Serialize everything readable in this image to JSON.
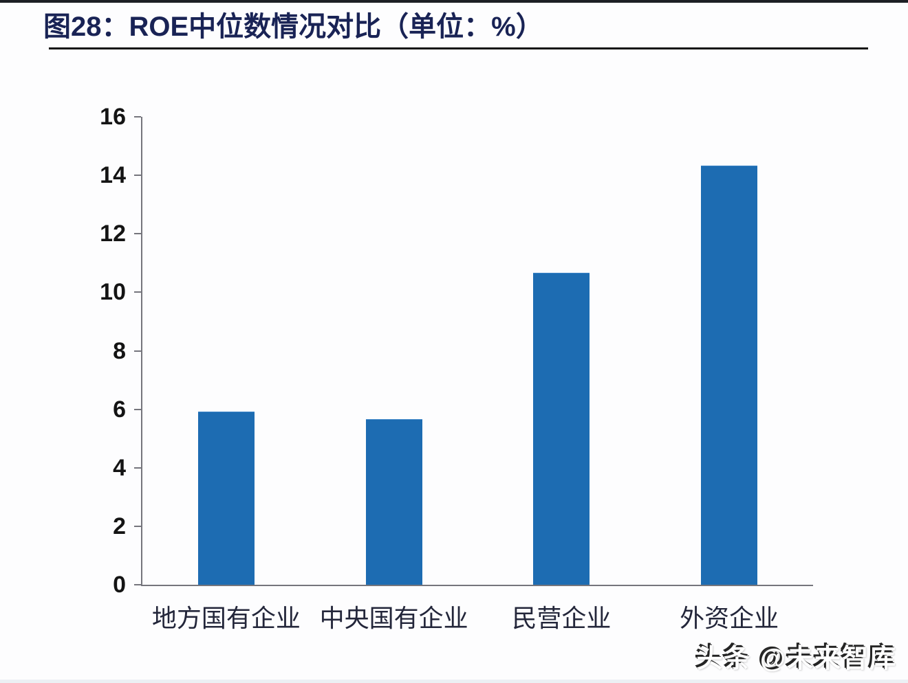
{
  "page": {
    "title": "图28：ROE中位数情况对比（单位：%）",
    "watermark": "头条 @未来智库"
  },
  "chart_data": {
    "type": "bar",
    "title": "图28：ROE中位数情况对比（单位：%）",
    "unit": "%",
    "categories": [
      "地方国有企业",
      "中央国有企业",
      "民营企业",
      "外资企业"
    ],
    "values": [
      5.9,
      5.65,
      10.65,
      14.3
    ],
    "xlabel": "",
    "ylabel": "",
    "ylim": [
      0,
      16
    ],
    "yticks": [
      0,
      2,
      4,
      6,
      8,
      10,
      12,
      14,
      16
    ],
    "grid": false,
    "legend": "none",
    "bar_color": "#1d6cb2"
  },
  "colors": {
    "title_text": "#192355",
    "bar": "#1d6cb2",
    "axis_line": "#75757c",
    "tick_label": "#141414",
    "category_label": "#23263a",
    "title_rule": "#121212"
  }
}
